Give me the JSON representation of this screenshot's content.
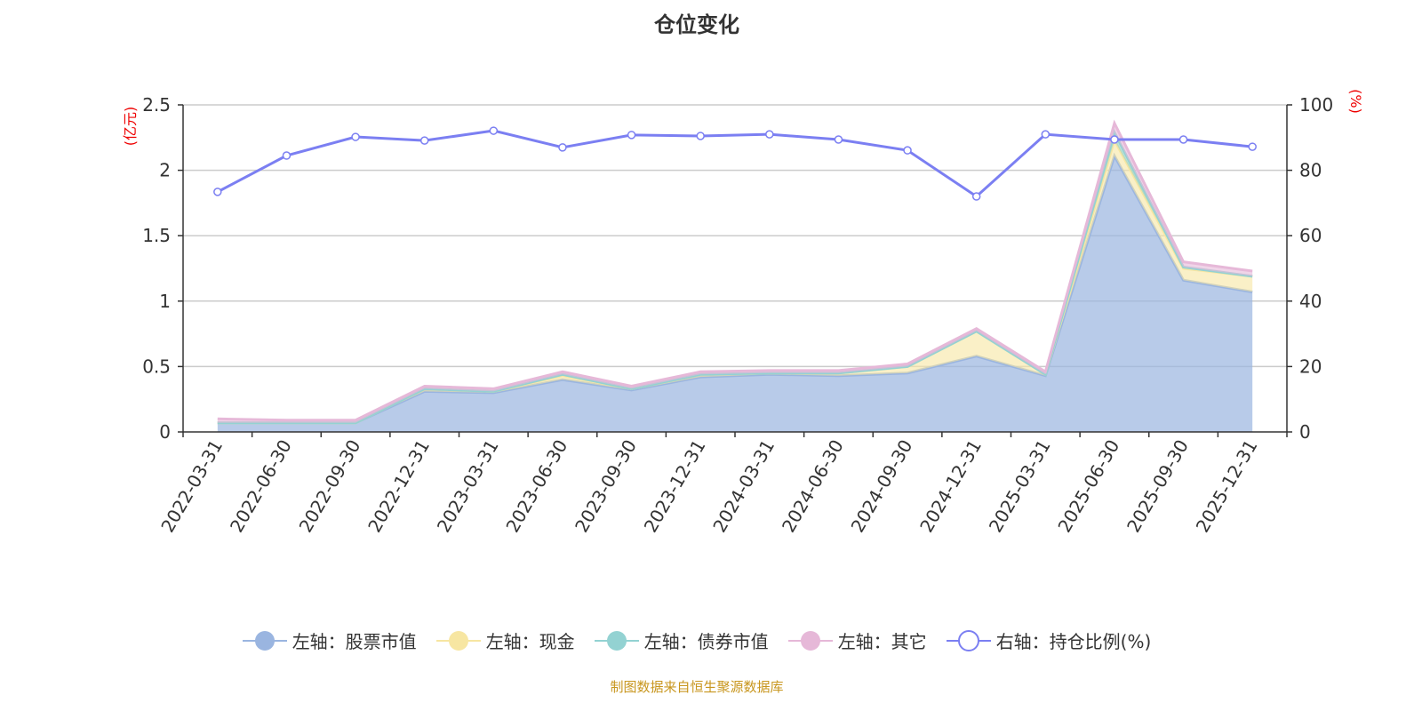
{
  "chart_data": {
    "type": "area",
    "title": "仓位变化",
    "ylabel_left": "(亿元)",
    "ylabel_right": "(%)",
    "ylim_left": [
      0,
      2.5
    ],
    "ylim_right": [
      0,
      100
    ],
    "yticks_left": [
      "0",
      "0.5",
      "1",
      "1.5",
      "2",
      "2.5"
    ],
    "yticks_right": [
      "0",
      "20",
      "40",
      "60",
      "80",
      "100"
    ],
    "categories": [
      "2022-03-31",
      "2022-06-30",
      "2022-09-30",
      "2022-12-31",
      "2023-03-31",
      "2023-06-30",
      "2023-09-30",
      "2023-12-31",
      "2024-03-31",
      "2024-06-30",
      "2024-09-30",
      "2024-12-31",
      "2025-03-31",
      "2025-06-30",
      "2025-09-30",
      "2025-12-31"
    ],
    "stacked_series": [
      {
        "name": "左轴：股票市值",
        "color": "#9ab5e0",
        "values": [
          0.07,
          0.07,
          0.07,
          0.31,
          0.3,
          0.4,
          0.32,
          0.42,
          0.44,
          0.43,
          0.45,
          0.58,
          0.43,
          2.11,
          1.16,
          1.07
        ]
      },
      {
        "name": "左轴：现金",
        "color": "#f7e6a2",
        "values": [
          0.0,
          0.0,
          0.0,
          0.02,
          0.01,
          0.03,
          0.01,
          0.02,
          0.01,
          0.02,
          0.05,
          0.19,
          0.01,
          0.12,
          0.09,
          0.12
        ]
      },
      {
        "name": "左轴：债券市值",
        "color": "#93d2d2",
        "values": [
          0.0,
          0.0,
          0.0,
          0.0,
          0.0,
          0.01,
          0.0,
          0.0,
          0.0,
          0.0,
          0.0,
          0.0,
          0.0,
          0.06,
          0.01,
          0.0
        ]
      },
      {
        "name": "左轴：其它",
        "color": "#e6b8d8",
        "values": [
          0.03,
          0.02,
          0.02,
          0.02,
          0.02,
          0.02,
          0.02,
          0.02,
          0.02,
          0.02,
          0.02,
          0.02,
          0.02,
          0.07,
          0.04,
          0.04
        ]
      }
    ],
    "line_series": {
      "name": "右轴：持仓比例(%)",
      "color": "#7b7ff2",
      "values": [
        73.4,
        84.5,
        90.2,
        89.1,
        92.1,
        87.0,
        90.8,
        90.5,
        91.0,
        89.4,
        86.1,
        72.0,
        91.0,
        89.4,
        89.4,
        87.2
      ]
    },
    "grid": true,
    "legend_position": "bottom"
  },
  "footer": "制图数据来自恒生聚源数据库"
}
